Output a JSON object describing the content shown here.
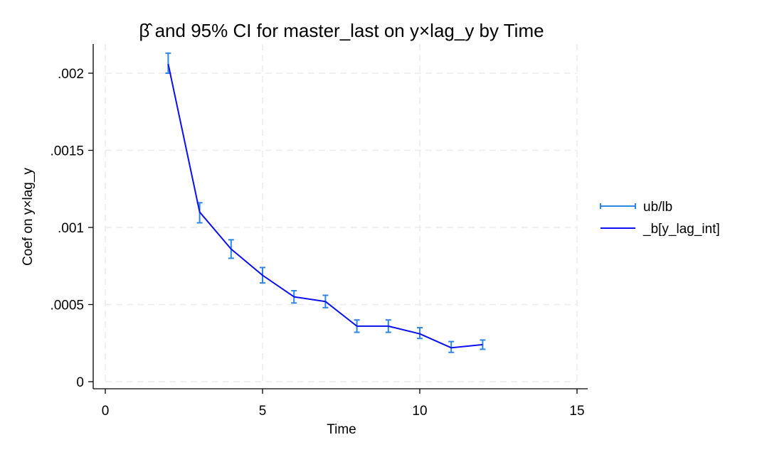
{
  "chart_data": {
    "type": "line",
    "title": "β̂ and 95% CI for master_last on y×lag_y by Time",
    "xlabel": "Time",
    "ylabel": "Coef on y×lag_y",
    "xlim": [
      0,
      15
    ],
    "ylim": [
      0,
      0.0022
    ],
    "x_ticks": [
      {
        "value": 0,
        "label": "0"
      },
      {
        "value": 5,
        "label": "5"
      },
      {
        "value": 10,
        "label": "10"
      },
      {
        "value": 15,
        "label": "15"
      }
    ],
    "y_ticks": [
      {
        "value": 0,
        "label": "0"
      },
      {
        "value": 0.0005,
        "label": ".0005"
      },
      {
        "value": 0.001,
        "label": ".001"
      },
      {
        "value": 0.0015,
        "label": ".0015"
      },
      {
        "value": 0.002,
        "label": ".002"
      }
    ],
    "grid": true,
    "legend_position": "right",
    "colors": {
      "ci": "#2e86e8",
      "line": "#0a10f0"
    },
    "series": [
      {
        "name": "ub/lb",
        "kind": "errorbar",
        "x": [
          2,
          3,
          4,
          5,
          6,
          7,
          8,
          9,
          10,
          11,
          12
        ],
        "ub": [
          0.00213,
          0.00116,
          0.00092,
          0.00074,
          0.00059,
          0.00056,
          0.0004,
          0.0004,
          0.00035,
          0.00026,
          0.00027
        ],
        "lb": [
          0.002,
          0.00103,
          0.0008,
          0.00064,
          0.00051,
          0.00048,
          0.00032,
          0.00032,
          0.00028,
          0.00019,
          0.00021
        ]
      },
      {
        "name": "_b[y_lag_int]",
        "kind": "line",
        "x": [
          2,
          3,
          4,
          5,
          6,
          7,
          8,
          9,
          10,
          11,
          12
        ],
        "y": [
          0.00206,
          0.0011,
          0.00086,
          0.00069,
          0.00055,
          0.00052,
          0.00036,
          0.00036,
          0.00031,
          0.00022,
          0.00024
        ]
      }
    ]
  }
}
